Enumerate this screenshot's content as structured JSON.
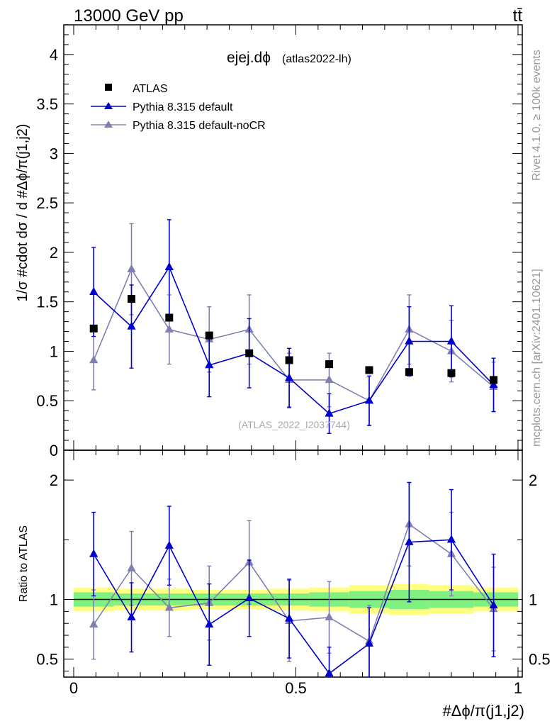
{
  "header": {
    "energy_label": "13000 GeV pp",
    "process_label": "tt̄",
    "rivet_label": "Rivet 4.1.0, ≥ 100k events",
    "mcplots_label": "mcplots.cern.ch [arXiv:2401.10621]"
  },
  "chart_data": [
    {
      "type": "scatter",
      "panel": "main",
      "title": "ejej.dϕ",
      "title_suffix": "(atlas2022-lh)",
      "watermark": "(ATLAS_2022_I2037744)",
      "ylabel": "1/σ #cdot dσ / d #Δϕ/π(j1,j2)",
      "xlabel": "",
      "xlim": [
        0,
        1
      ],
      "ylim": [
        0,
        4.3
      ],
      "yticks": [
        0,
        0.5,
        1,
        1.5,
        2,
        2.5,
        3,
        3.5,
        4
      ],
      "ytick_labels": [
        "0",
        "0.5",
        "1",
        "1.5",
        "2",
        "2.5",
        "3",
        "3.5",
        "4"
      ],
      "legend_position": "top-left",
      "x": [
        0.045,
        0.13,
        0.215,
        0.305,
        0.395,
        0.485,
        0.575,
        0.665,
        0.755,
        0.85,
        0.945
      ],
      "series": [
        {
          "name": "ATLAS",
          "marker": "square",
          "color": "#000000",
          "values": [
            1.23,
            1.53,
            1.34,
            1.16,
            0.98,
            0.91,
            0.87,
            0.81,
            0.79,
            0.78,
            0.71
          ]
        },
        {
          "name": "Pythia 8.315 default",
          "marker": "triangle",
          "color": "#0000cc",
          "values": [
            1.6,
            1.25,
            1.85,
            0.86,
            0.98,
            0.73,
            0.37,
            0.5,
            1.1,
            1.1,
            0.66
          ],
          "errors": [
            0.45,
            0.42,
            0.48,
            0.32,
            0.35,
            0.3,
            0.2,
            0.25,
            0.35,
            0.36,
            0.27
          ]
        },
        {
          "name": "Pythia 8.315 default-noCR",
          "marker": "triangle",
          "color": "#8080b0",
          "values": [
            0.91,
            1.83,
            1.22,
            1.12,
            1.22,
            0.71,
            0.71,
            0.5,
            1.22,
            1.0,
            0.64
          ],
          "errors": [
            0.3,
            0.46,
            0.35,
            0.33,
            0.35,
            0.27,
            0.27,
            0.25,
            0.35,
            0.31,
            0.25
          ]
        }
      ]
    },
    {
      "type": "scatter",
      "panel": "ratio",
      "ylabel": "Ratio to ATLAS",
      "xlabel": "#Δϕ/π(j1,j2)",
      "xlim": [
        0,
        1
      ],
      "ylim": [
        0.35,
        2.25
      ],
      "xticks": [
        0,
        0.5,
        1
      ],
      "xtick_labels": [
        "0",
        "0.5",
        "1"
      ],
      "yticks": [
        0.5,
        1,
        2
      ],
      "ytick_labels": [
        "0.5",
        "1",
        "2"
      ],
      "x_edges": [
        0,
        0.09,
        0.17,
        0.26,
        0.35,
        0.44,
        0.53,
        0.62,
        0.71,
        0.8,
        0.9,
        1.0
      ],
      "band_green": [
        0.06,
        0.05,
        0.05,
        0.05,
        0.05,
        0.05,
        0.06,
        0.07,
        0.08,
        0.07,
        0.06
      ],
      "band_yellow": [
        0.1,
        0.09,
        0.09,
        0.08,
        0.08,
        0.09,
        0.1,
        0.12,
        0.13,
        0.12,
        0.1
      ],
      "x": [
        0.045,
        0.13,
        0.215,
        0.305,
        0.395,
        0.485,
        0.575,
        0.665,
        0.755,
        0.85,
        0.945
      ],
      "series": [
        {
          "name": "Pythia 8.315 default",
          "color": "#0000cc",
          "values": [
            1.38,
            0.85,
            1.45,
            0.79,
            1.01,
            0.84,
            0.38,
            0.63,
            1.48,
            1.5,
            0.95
          ],
          "errors": [
            0.35,
            0.29,
            0.33,
            0.34,
            0.32,
            0.33,
            0.22,
            0.3,
            0.5,
            0.42,
            0.43
          ]
        },
        {
          "name": "Pythia 8.315 default-noCR",
          "color": "#8080b0",
          "values": [
            0.79,
            1.26,
            0.93,
            0.97,
            1.31,
            0.82,
            0.85,
            0.65,
            1.63,
            1.38,
            0.92
          ],
          "errors": [
            0.29,
            0.31,
            0.24,
            0.31,
            0.35,
            0.34,
            0.3,
            0.3,
            0.35,
            0.35,
            0.35
          ]
        }
      ]
    }
  ]
}
